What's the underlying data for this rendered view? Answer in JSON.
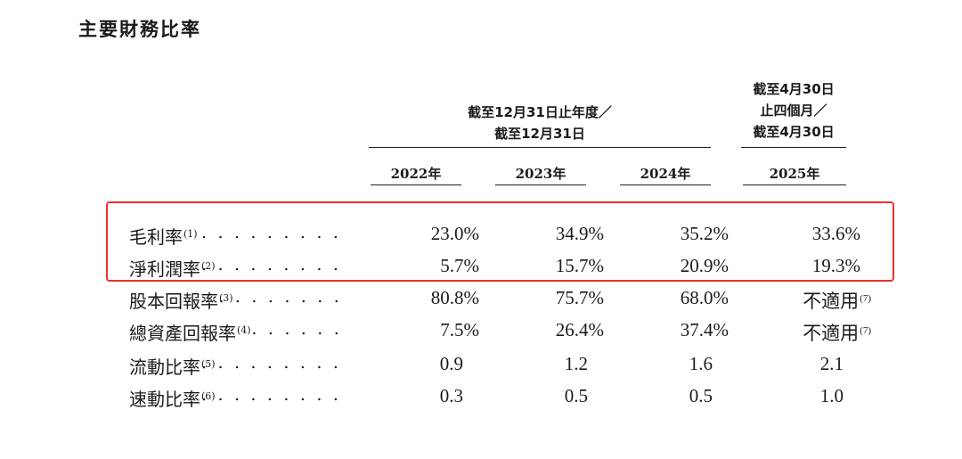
{
  "title": "主要財務比率",
  "header": {
    "main_line1": "截至12月31日止年度／",
    "main_line2": "截至12月31日",
    "side_line1": "截至4月30日",
    "side_line2": "止四個月／",
    "side_line3": "截至4月30日"
  },
  "years": [
    "2022年",
    "2023年",
    "2024年",
    "2025年"
  ],
  "rows": [
    {
      "label": "毛利率",
      "note": "(1)",
      "leader": ". . . . . . . . . . . .",
      "values": [
        "23.0%",
        "34.9%",
        "35.2%",
        "33.6%"
      ],
      "notes": [
        "",
        "",
        "",
        ""
      ]
    },
    {
      "label": "淨利潤率",
      "note": "(2)",
      "leader": ". . . . . . . . . .",
      "values": [
        "5.7%",
        "15.7%",
        "20.9%",
        "19.3%"
      ],
      "notes": [
        "",
        "",
        "",
        ""
      ]
    },
    {
      "label": "股本回報率",
      "note": "(3)",
      "leader": ". . . . . . . .",
      "values": [
        "80.8%",
        "75.7%",
        "68.0%",
        "不適用"
      ],
      "notes": [
        "",
        "",
        "",
        "(7)"
      ]
    },
    {
      "label": "總資產回報率",
      "note": "(4)",
      "leader": ". . . . . .",
      "values": [
        "7.5%",
        "26.4%",
        "37.4%",
        "不適用"
      ],
      "notes": [
        "",
        "",
        "",
        "(7)"
      ]
    },
    {
      "label": "流動比率",
      "note": "(5)",
      "leader": ". . . . . . . . . .",
      "values": [
        "0.9",
        "1.2",
        "1.6",
        "2.1"
      ],
      "notes": [
        "",
        "",
        "",
        ""
      ]
    },
    {
      "label": "速動比率",
      "note": "(6)",
      "leader": ". . . . . . . . . .",
      "values": [
        "0.3",
        "0.5",
        "0.5",
        "1.0"
      ],
      "notes": [
        "",
        "",
        "",
        ""
      ]
    }
  ],
  "colors": {
    "highlight_border": "#e8322b",
    "text": "#1a1a1a"
  }
}
